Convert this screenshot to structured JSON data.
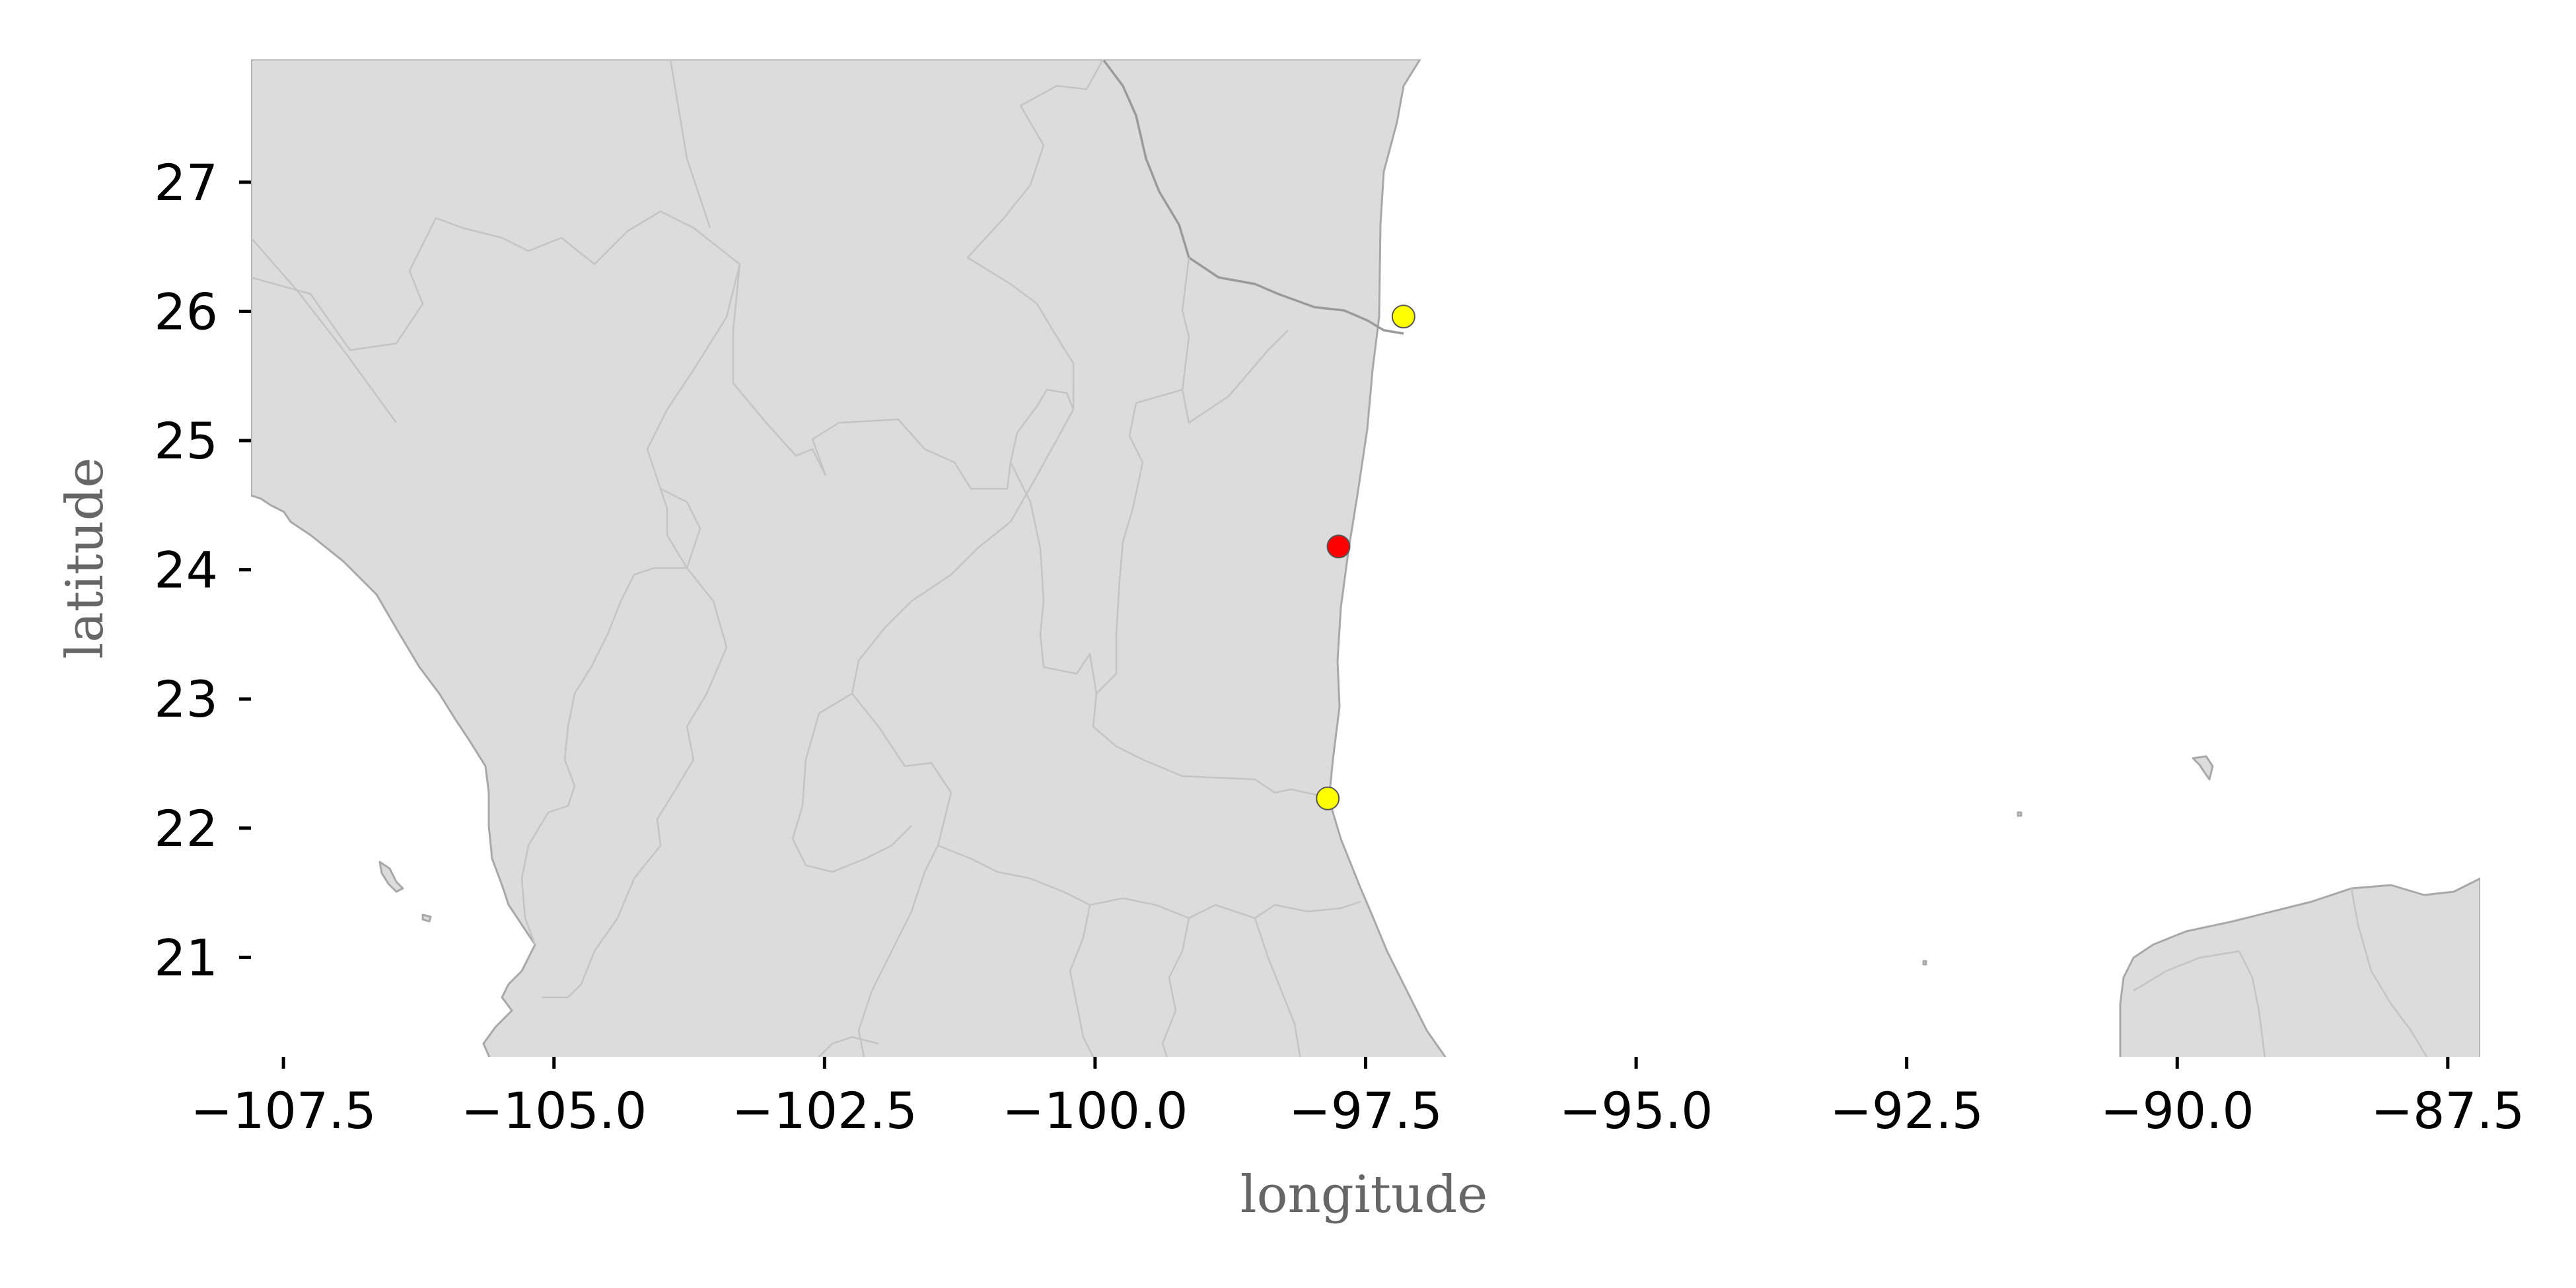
{
  "chart_data": {
    "type": "scatter",
    "title": "",
    "xlabel": "longitude",
    "ylabel": "latitude",
    "xlim": [
      -107.8,
      -87.2
    ],
    "ylim": [
      20.23,
      27.95
    ],
    "xticks": [
      -107.5,
      -105.0,
      -102.5,
      -100.0,
      -97.5,
      -95.0,
      -92.5,
      -90.0,
      -87.5
    ],
    "yticks": [
      21,
      22,
      23,
      24,
      25,
      26,
      27
    ],
    "xtick_labels": [
      "−107.5",
      "−105.0",
      "−102.5",
      "−100.0",
      "−97.5",
      "−95.0",
      "−92.5",
      "−90.0",
      "−87.5"
    ],
    "ytick_labels": [
      "21",
      "22",
      "23",
      "24",
      "25",
      "26",
      "27"
    ],
    "grid": false,
    "basemap": {
      "land_color": "#dcdcdc",
      "coastline_color": "#a8a8a8",
      "border_color": "#c4c4c4",
      "ocean_color": "#ffffff"
    },
    "points": [
      {
        "lon": -97.15,
        "lat": 25.96,
        "color": "#ffff00"
      },
      {
        "lon": -97.75,
        "lat": 24.18,
        "color": "#ff0000"
      },
      {
        "lon": -97.85,
        "lat": 22.23,
        "color": "#ffff00"
      }
    ]
  }
}
